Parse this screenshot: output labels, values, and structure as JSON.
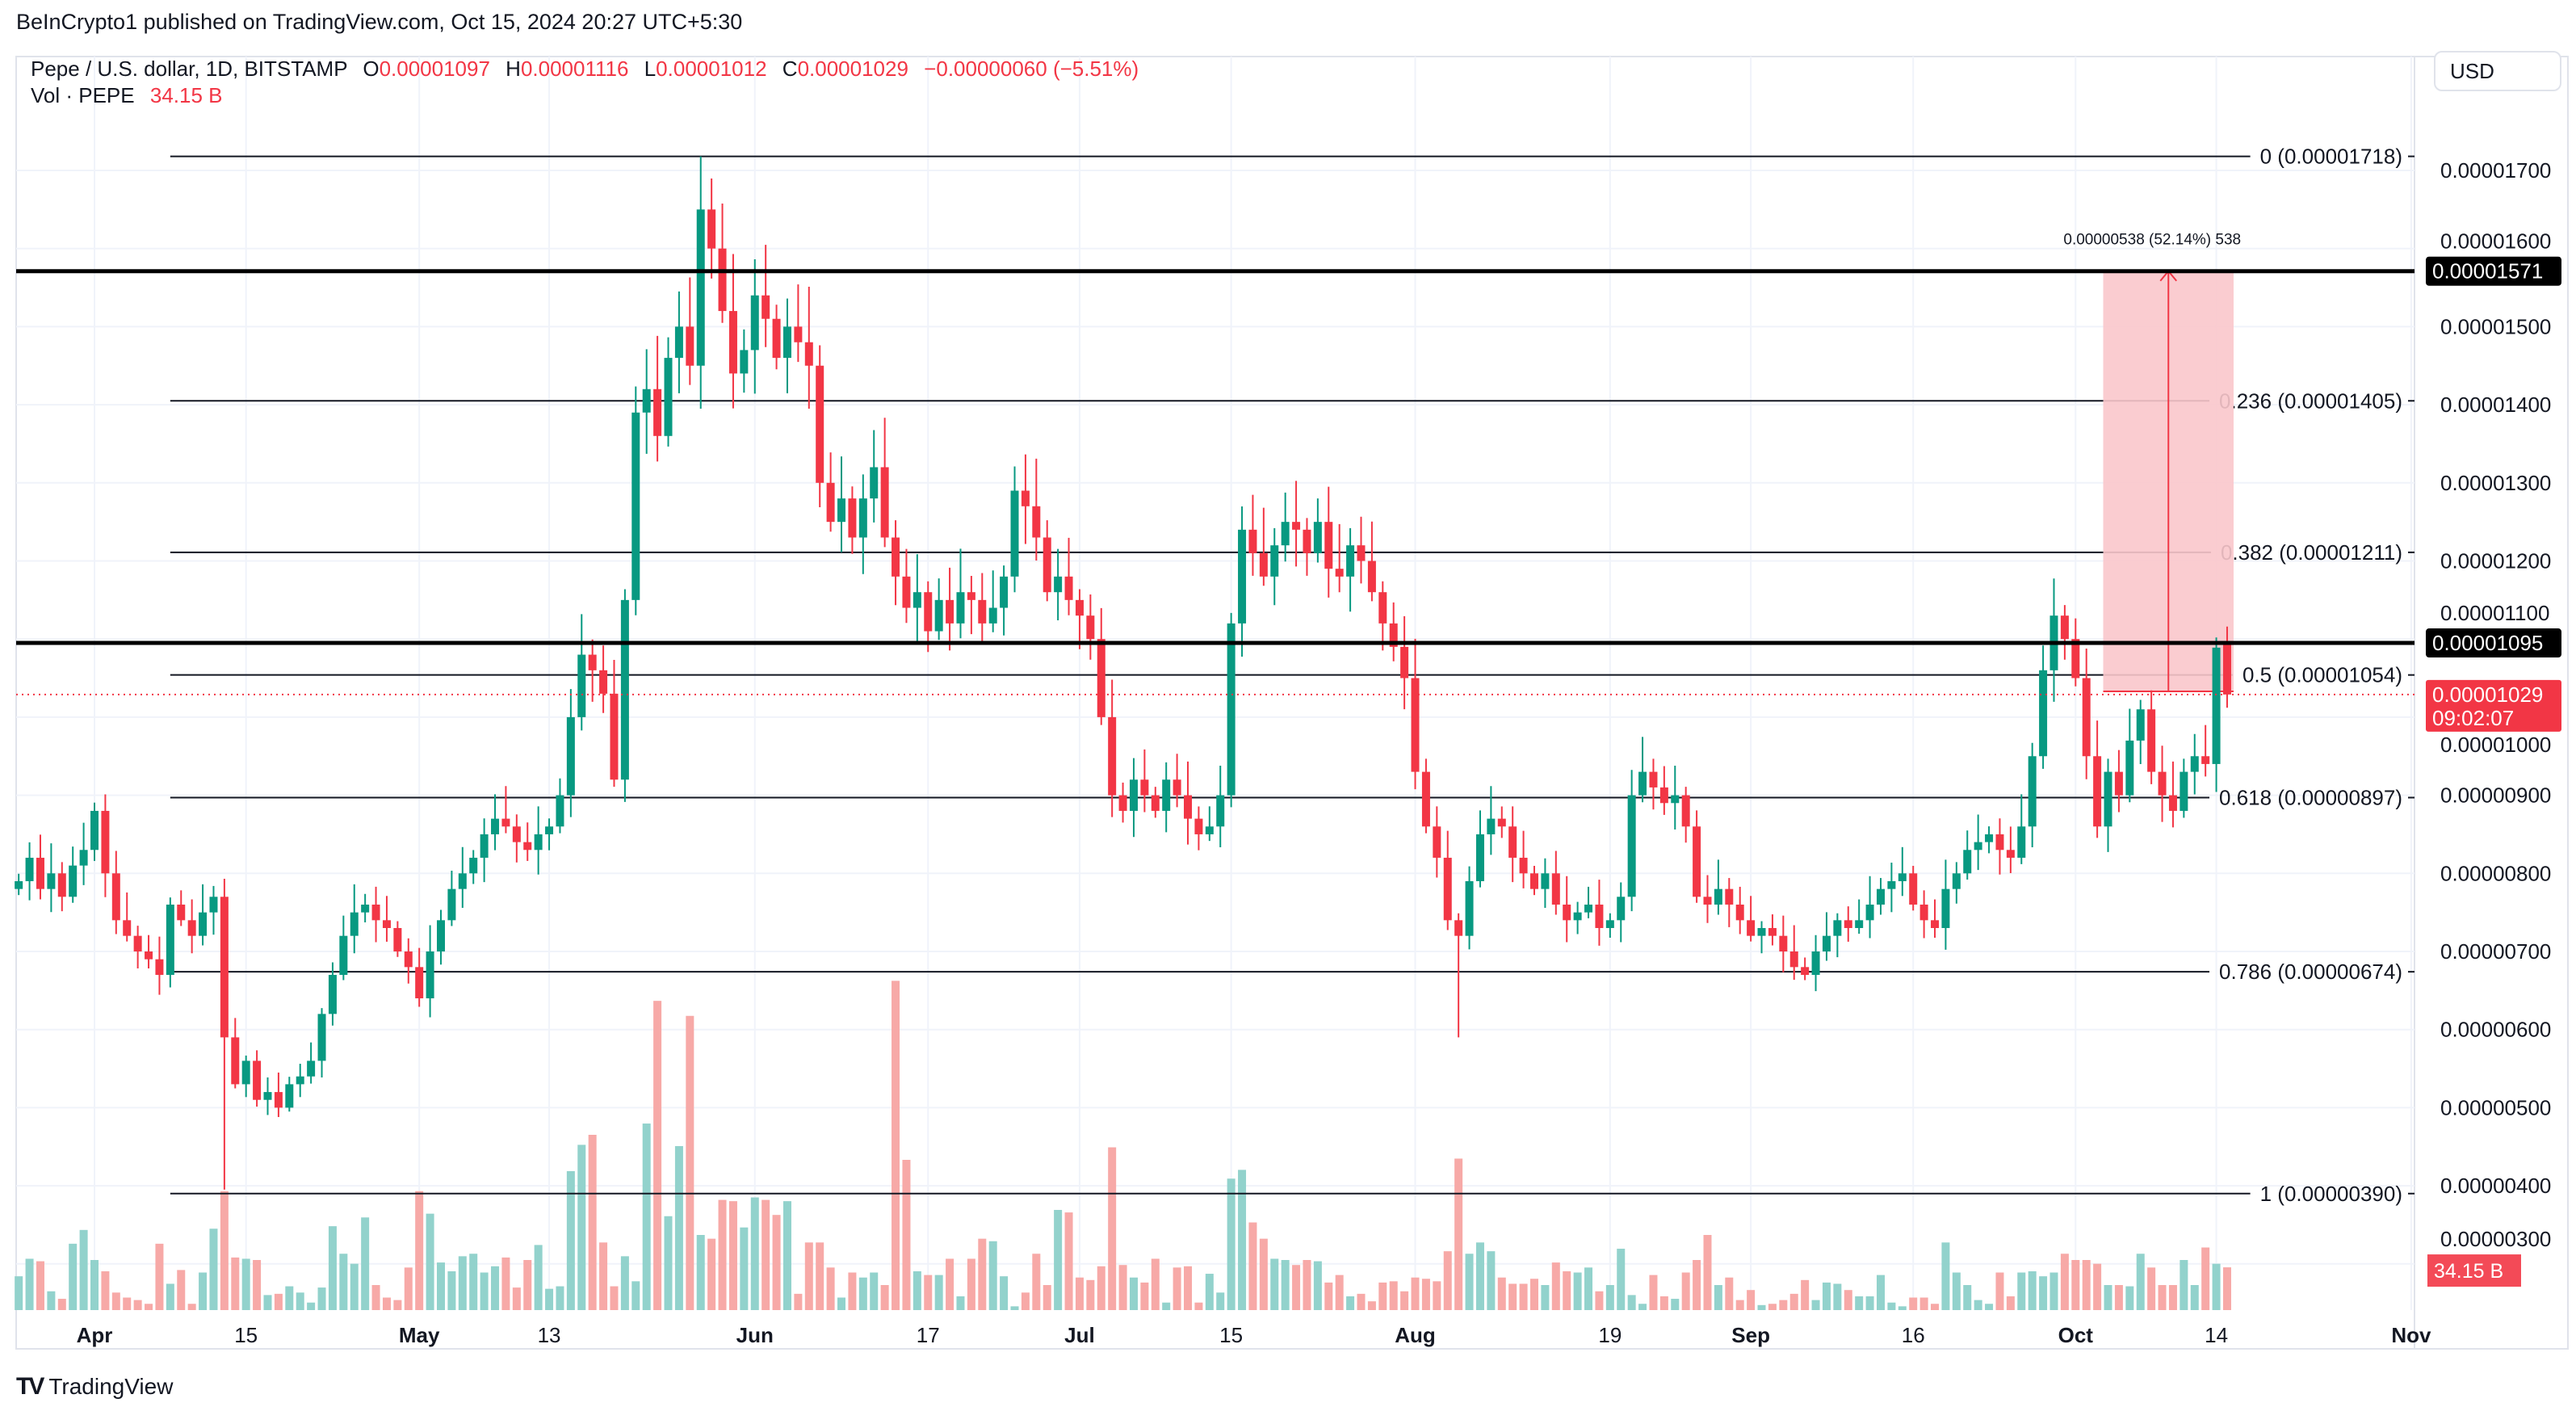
{
  "header": {
    "published": "BeInCrypto1 published on TradingView.com, Oct 15, 2024 20:27 UTC+5:30"
  },
  "legend": {
    "symbol": "Pepe / U.S. dollar, 1D, BITSTAMP",
    "o_label": "O",
    "o": "0.00001097",
    "h_label": "H",
    "h": "0.00001116",
    "l_label": "L",
    "l": "0.00001012",
    "c_label": "C",
    "c": "0.00001029",
    "change": "−0.00000060 (−5.51%)",
    "vol_label": "Vol · PEPE",
    "vol_value": "34.15 B"
  },
  "currency_button": "USD",
  "brand": "TradingView",
  "colors": {
    "up": "#089981",
    "down": "#f23645",
    "vol_up": "#92d2cc",
    "vol_down": "#f7a9a7",
    "zone": "#f9c7cb"
  },
  "chart_data": {
    "type": "candlestick",
    "title": "Pepe / U.S. dollar, 1D, BITSTAMP",
    "y_ticks": [
      "0.00001700",
      "0.00001600",
      "0.00001500",
      "0.00001400",
      "0.00001300",
      "0.00001200",
      "0.00001100",
      "0.00001000",
      "0.00000900",
      "0.00000800",
      "0.00000700",
      "0.00000600",
      "0.00000500",
      "0.00000400",
      "0.00000300"
    ],
    "ylim": [
      2.8e-06,
      1.86e-05
    ],
    "x_ticks": [
      {
        "date": "2024-04-01",
        "label": "Apr",
        "month": true
      },
      {
        "date": "2024-04-15",
        "label": "15"
      },
      {
        "date": "2024-05-01",
        "label": "May",
        "month": true
      },
      {
        "date": "2024-05-13",
        "label": "13"
      },
      {
        "date": "2024-06-01",
        "label": "Jun",
        "month": true
      },
      {
        "date": "2024-06-17",
        "label": "17"
      },
      {
        "date": "2024-07-01",
        "label": "Jul",
        "month": true
      },
      {
        "date": "2024-07-15",
        "label": "15"
      },
      {
        "date": "2024-08-01",
        "label": "Aug",
        "month": true
      },
      {
        "date": "2024-08-19",
        "label": "19"
      },
      {
        "date": "2024-09-01",
        "label": "Sep",
        "month": true
      },
      {
        "date": "2024-09-16",
        "label": "16"
      },
      {
        "date": "2024-10-01",
        "label": "Oct",
        "month": true
      },
      {
        "date": "2024-10-14",
        "label": "14"
      },
      {
        "date": "2024-11-01",
        "label": "Nov",
        "month": true
      }
    ],
    "xlim": [
      "2024-03-24",
      "2024-11-04"
    ],
    "first_open": 7.8e-06,
    "candles_columns": [
      "date",
      "close",
      "volume_B"
    ],
    "candles": [
      [
        "2024-03-25",
        7.9e-06,
        27
      ],
      [
        "2024-03-26",
        8.2e-06,
        41
      ],
      [
        "2024-03-27",
        7.8e-06,
        39
      ],
      [
        "2024-03-28",
        8e-06,
        15
      ],
      [
        "2024-03-29",
        7.7e-06,
        9
      ],
      [
        "2024-03-30",
        8.1e-06,
        53
      ],
      [
        "2024-03-31",
        8.3e-06,
        64
      ],
      [
        "2024-04-01",
        8.8e-06,
        40
      ],
      [
        "2024-04-02",
        8e-06,
        31
      ],
      [
        "2024-04-03",
        7.4e-06,
        14
      ],
      [
        "2024-04-04",
        7.2e-06,
        10
      ],
      [
        "2024-04-05",
        7e-06,
        8
      ],
      [
        "2024-04-06",
        6.9e-06,
        5
      ],
      [
        "2024-04-07",
        6.7e-06,
        53
      ],
      [
        "2024-04-08",
        7.6e-06,
        21
      ],
      [
        "2024-04-09",
        7.4e-06,
        32
      ],
      [
        "2024-04-10",
        7.2e-06,
        5
      ],
      [
        "2024-04-11",
        7.5e-06,
        30
      ],
      [
        "2024-04-12",
        7.7e-06,
        65
      ],
      [
        "2024-04-13",
        5.9e-06,
        95
      ],
      [
        "2024-04-14",
        5.3e-06,
        42
      ],
      [
        "2024-04-15",
        5.6e-06,
        41
      ],
      [
        "2024-04-16",
        5.1e-06,
        40
      ],
      [
        "2024-04-17",
        5.2e-06,
        12
      ],
      [
        "2024-04-18",
        5e-06,
        13
      ],
      [
        "2024-04-19",
        5.3e-06,
        19
      ],
      [
        "2024-04-20",
        5.4e-06,
        14
      ],
      [
        "2024-04-21",
        5.6e-06,
        6
      ],
      [
        "2024-04-22",
        6.2e-06,
        18
      ],
      [
        "2024-04-23",
        6.7e-06,
        67
      ],
      [
        "2024-04-24",
        7.2e-06,
        45
      ],
      [
        "2024-04-25",
        7.5e-06,
        37
      ],
      [
        "2024-04-26",
        7.6e-06,
        74
      ],
      [
        "2024-04-27",
        7.4e-06,
        20
      ],
      [
        "2024-04-28",
        7.3e-06,
        10
      ],
      [
        "2024-04-29",
        7e-06,
        8
      ],
      [
        "2024-04-30",
        6.8e-06,
        34
      ],
      [
        "2024-05-01",
        6.4e-06,
        95
      ],
      [
        "2024-05-02",
        7e-06,
        77
      ],
      [
        "2024-05-03",
        7.4e-06,
        38
      ],
      [
        "2024-05-04",
        7.8e-06,
        31
      ],
      [
        "2024-05-05",
        8e-06,
        43
      ],
      [
        "2024-05-06",
        8.2e-06,
        45
      ],
      [
        "2024-05-07",
        8.5e-06,
        30
      ],
      [
        "2024-05-08",
        8.7e-06,
        35
      ],
      [
        "2024-05-09",
        8.6e-06,
        42
      ],
      [
        "2024-05-10",
        8.4e-06,
        18
      ],
      [
        "2024-05-11",
        8.3e-06,
        40
      ],
      [
        "2024-05-12",
        8.5e-06,
        52
      ],
      [
        "2024-05-13",
        8.6e-06,
        17
      ],
      [
        "2024-05-14",
        9e-06,
        19
      ],
      [
        "2024-05-15",
        1e-05,
        111
      ],
      [
        "2024-05-16",
        1.08e-05,
        132
      ],
      [
        "2024-05-17",
        1.06e-05,
        140
      ],
      [
        "2024-05-18",
        1.03e-05,
        54
      ],
      [
        "2024-05-19",
        9.2e-06,
        19
      ],
      [
        "2024-05-20",
        1.15e-05,
        43
      ],
      [
        "2024-05-21",
        1.39e-05,
        23
      ],
      [
        "2024-05-22",
        1.42e-05,
        149
      ],
      [
        "2024-05-23",
        1.36e-05,
        247
      ],
      [
        "2024-05-24",
        1.46e-05,
        75
      ],
      [
        "2024-05-25",
        1.5e-05,
        131
      ],
      [
        "2024-05-26",
        1.45e-05,
        235
      ],
      [
        "2024-05-27",
        1.65e-05,
        60
      ],
      [
        "2024-05-28",
        1.6e-05,
        57
      ],
      [
        "2024-05-29",
        1.52e-05,
        88
      ],
      [
        "2024-05-30",
        1.44e-05,
        87
      ],
      [
        "2024-05-31",
        1.47e-05,
        66
      ],
      [
        "2024-06-01",
        1.54e-05,
        90
      ],
      [
        "2024-06-02",
        1.51e-05,
        88
      ],
      [
        "2024-06-03",
        1.46e-05,
        76
      ],
      [
        "2024-06-04",
        1.5e-05,
        87
      ],
      [
        "2024-06-05",
        1.48e-05,
        13
      ],
      [
        "2024-06-06",
        1.45e-05,
        54
      ],
      [
        "2024-06-07",
        1.3e-05,
        54
      ],
      [
        "2024-06-08",
        1.25e-05,
        34
      ],
      [
        "2024-06-09",
        1.28e-05,
        10
      ],
      [
        "2024-06-10",
        1.23e-05,
        30
      ],
      [
        "2024-06-11",
        1.28e-05,
        26
      ],
      [
        "2024-06-12",
        1.32e-05,
        30
      ],
      [
        "2024-06-13",
        1.23e-05,
        20
      ],
      [
        "2024-06-14",
        1.18e-05,
        263
      ],
      [
        "2024-06-15",
        1.14e-05,
        120
      ],
      [
        "2024-06-16",
        1.16e-05,
        31
      ],
      [
        "2024-06-17",
        1.11e-05,
        28
      ],
      [
        "2024-06-18",
        1.15e-05,
        28
      ],
      [
        "2024-06-19",
        1.12e-05,
        41
      ],
      [
        "2024-06-20",
        1.16e-05,
        11
      ],
      [
        "2024-06-21",
        1.15e-05,
        41
      ],
      [
        "2024-06-22",
        1.12e-05,
        57
      ],
      [
        "2024-06-23",
        1.14e-05,
        55
      ],
      [
        "2024-06-24",
        1.18e-05,
        27
      ],
      [
        "2024-06-25",
        1.29e-05,
        3
      ],
      [
        "2024-06-26",
        1.27e-05,
        14
      ],
      [
        "2024-06-27",
        1.23e-05,
        45
      ],
      [
        "2024-06-28",
        1.16e-05,
        20
      ],
      [
        "2024-06-29",
        1.18e-05,
        80
      ],
      [
        "2024-06-30",
        1.15e-05,
        78
      ],
      [
        "2024-07-01",
        1.13e-05,
        26
      ],
      [
        "2024-07-02",
        1.1e-05,
        24
      ],
      [
        "2024-07-03",
        1e-05,
        35
      ],
      [
        "2024-07-04",
        9e-06,
        130
      ],
      [
        "2024-07-05",
        8.8e-06,
        36
      ],
      [
        "2024-07-06",
        9.2e-06,
        26
      ],
      [
        "2024-07-07",
        9e-06,
        22
      ],
      [
        "2024-07-08",
        8.8e-06,
        41
      ],
      [
        "2024-07-09",
        9.2e-06,
        6
      ],
      [
        "2024-07-10",
        9e-06,
        34
      ],
      [
        "2024-07-11",
        8.7e-06,
        35
      ],
      [
        "2024-07-12",
        8.5e-06,
        6
      ],
      [
        "2024-07-13",
        8.6e-06,
        29
      ],
      [
        "2024-07-14",
        9e-06,
        14
      ],
      [
        "2024-07-15",
        1.12e-05,
        105
      ],
      [
        "2024-07-16",
        1.24e-05,
        112
      ],
      [
        "2024-07-17",
        1.21e-05,
        70
      ],
      [
        "2024-07-18",
        1.18e-05,
        57
      ],
      [
        "2024-07-19",
        1.22e-05,
        41
      ],
      [
        "2024-07-20",
        1.25e-05,
        40
      ],
      [
        "2024-07-21",
        1.24e-05,
        36
      ],
      [
        "2024-07-22",
        1.21e-05,
        40
      ],
      [
        "2024-07-23",
        1.25e-05,
        39
      ],
      [
        "2024-07-24",
        1.19e-05,
        22
      ],
      [
        "2024-07-25",
        1.18e-05,
        28
      ],
      [
        "2024-07-26",
        1.22e-05,
        11
      ],
      [
        "2024-07-27",
        1.2e-05,
        13
      ],
      [
        "2024-07-28",
        1.16e-05,
        7
      ],
      [
        "2024-07-29",
        1.12e-05,
        22
      ],
      [
        "2024-07-30",
        1.09e-05,
        23
      ],
      [
        "2024-07-31",
        1.05e-05,
        15
      ],
      [
        "2024-08-01",
        9.3e-06,
        26
      ],
      [
        "2024-08-02",
        8.6e-06,
        25
      ],
      [
        "2024-08-03",
        8.2e-06,
        23
      ],
      [
        "2024-08-04",
        7.4e-06,
        47
      ],
      [
        "2024-08-05",
        7.2e-06,
        121
      ],
      [
        "2024-08-06",
        7.9e-06,
        45
      ],
      [
        "2024-08-07",
        8.5e-06,
        54
      ],
      [
        "2024-08-08",
        8.7e-06,
        47
      ],
      [
        "2024-08-09",
        8.6e-06,
        26
      ],
      [
        "2024-08-10",
        8.2e-06,
        21
      ],
      [
        "2024-08-11",
        8e-06,
        21
      ],
      [
        "2024-08-12",
        7.8e-06,
        25
      ],
      [
        "2024-08-13",
        8e-06,
        20
      ],
      [
        "2024-08-14",
        7.6e-06,
        38
      ],
      [
        "2024-08-15",
        7.4e-06,
        31
      ],
      [
        "2024-08-16",
        7.5e-06,
        30
      ],
      [
        "2024-08-17",
        7.6e-06,
        34
      ],
      [
        "2024-08-18",
        7.3e-06,
        15
      ],
      [
        "2024-08-19",
        7.4e-06,
        20
      ],
      [
        "2024-08-20",
        7.7e-06,
        49
      ],
      [
        "2024-08-21",
        9e-06,
        12
      ],
      [
        "2024-08-22",
        9.3e-06,
        5
      ],
      [
        "2024-08-23",
        9.1e-06,
        28
      ],
      [
        "2024-08-24",
        8.9e-06,
        11
      ],
      [
        "2024-08-25",
        9e-06,
        9
      ],
      [
        "2024-08-26",
        8.6e-06,
        30
      ],
      [
        "2024-08-27",
        7.7e-06,
        40
      ],
      [
        "2024-08-28",
        7.6e-06,
        60
      ],
      [
        "2024-08-29",
        7.8e-06,
        20
      ],
      [
        "2024-08-30",
        7.6e-06,
        26
      ],
      [
        "2024-08-31",
        7.4e-06,
        8
      ],
      [
        "2024-09-01",
        7.2e-06,
        16
      ],
      [
        "2024-09-02",
        7.3e-06,
        4
      ],
      [
        "2024-09-03",
        7.2e-06,
        5
      ],
      [
        "2024-09-04",
        7e-06,
        8
      ],
      [
        "2024-09-05",
        6.8e-06,
        13
      ],
      [
        "2024-09-06",
        6.7e-06,
        24
      ],
      [
        "2024-09-07",
        7e-06,
        8
      ],
      [
        "2024-09-08",
        7.2e-06,
        22
      ],
      [
        "2024-09-09",
        7.4e-06,
        21
      ],
      [
        "2024-09-10",
        7.3e-06,
        16
      ],
      [
        "2024-09-11",
        7.4e-06,
        11
      ],
      [
        "2024-09-12",
        7.6e-06,
        11
      ],
      [
        "2024-09-13",
        7.8e-06,
        28
      ],
      [
        "2024-09-14",
        7.9e-06,
        6
      ],
      [
        "2024-09-15",
        8e-06,
        3
      ],
      [
        "2024-09-16",
        7.6e-06,
        10
      ],
      [
        "2024-09-17",
        7.4e-06,
        10
      ],
      [
        "2024-09-18",
        7.3e-06,
        5
      ],
      [
        "2024-09-19",
        7.8e-06,
        54
      ],
      [
        "2024-09-20",
        8e-06,
        30
      ],
      [
        "2024-09-21",
        8.3e-06,
        20
      ],
      [
        "2024-09-22",
        8.4e-06,
        8
      ],
      [
        "2024-09-23",
        8.5e-06,
        5
      ],
      [
        "2024-09-24",
        8.3e-06,
        30
      ],
      [
        "2024-09-25",
        8.2e-06,
        11
      ],
      [
        "2024-09-26",
        8.6e-06,
        30
      ],
      [
        "2024-09-27",
        9.5e-06,
        31
      ],
      [
        "2024-09-28",
        1.06e-05,
        27
      ],
      [
        "2024-09-29",
        1.13e-05,
        30
      ],
      [
        "2024-09-30",
        1.1e-05,
        45
      ],
      [
        "2024-10-01",
        1.05e-05,
        40
      ],
      [
        "2024-10-02",
        9.5e-06,
        40
      ],
      [
        "2024-10-03",
        8.6e-06,
        37
      ],
      [
        "2024-10-04",
        9.3e-06,
        20
      ],
      [
        "2024-10-05",
        9e-06,
        20
      ],
      [
        "2024-10-06",
        9.7e-06,
        19
      ],
      [
        "2024-10-07",
        1.01e-05,
        45
      ],
      [
        "2024-10-08",
        9.3e-06,
        34
      ],
      [
        "2024-10-09",
        9e-06,
        20
      ],
      [
        "2024-10-10",
        8.8e-06,
        20
      ],
      [
        "2024-10-11",
        9.3e-06,
        40
      ],
      [
        "2024-10-12",
        9.5e-06,
        20
      ],
      [
        "2024-10-13",
        9.4e-06,
        50
      ],
      [
        "2024-10-14",
        1.089e-05,
        37
      ],
      [
        "2024-10-15",
        1.029e-05,
        34.15
      ]
    ],
    "wick_extremes": {
      "2024-04-13": {
        "low": 3.95e-06
      },
      "2024-05-27": {
        "high": 1.718e-05
      },
      "2024-08-05": {
        "low": 5.9e-06
      },
      "2024-10-15": {
        "open": 1.097e-05,
        "high": 1.116e-05,
        "low": 1.012e-05
      }
    },
    "fib_retracement": [
      {
        "label": "0 (0.00001718)",
        "price": 1.718e-05
      },
      {
        "label": "0.236 (0.00001405)",
        "price": 1.405e-05
      },
      {
        "label": "0.382 (0.00001211)",
        "price": 1.211e-05
      },
      {
        "label": "0.5 (0.00001054)",
        "price": 1.054e-05
      },
      {
        "label": "0.618 (0.00000897)",
        "price": 8.97e-06
      },
      {
        "label": "0.786 (0.00000674)",
        "price": 6.74e-06
      },
      {
        "label": "1 (0.00000390)",
        "price": 3.9e-06
      }
    ],
    "fib_start_date": "2024-04-08",
    "horizontal_lines": [
      {
        "label": "0.00001571",
        "price": 1.571e-05
      },
      {
        "label": "0.00001095",
        "price": 1.095e-05
      }
    ],
    "last_price": {
      "label": "0.00001029",
      "countdown": "09:02:07",
      "price": 1.029e-05
    },
    "last_volume_label": "34.15 B",
    "price_range_tool": {
      "label": "0.00000538 (52.14%) 538",
      "from_date": "2024-10-04",
      "to_date": "2024-10-15",
      "from_price": 1.033e-05,
      "to_price": 1.571e-05
    }
  }
}
